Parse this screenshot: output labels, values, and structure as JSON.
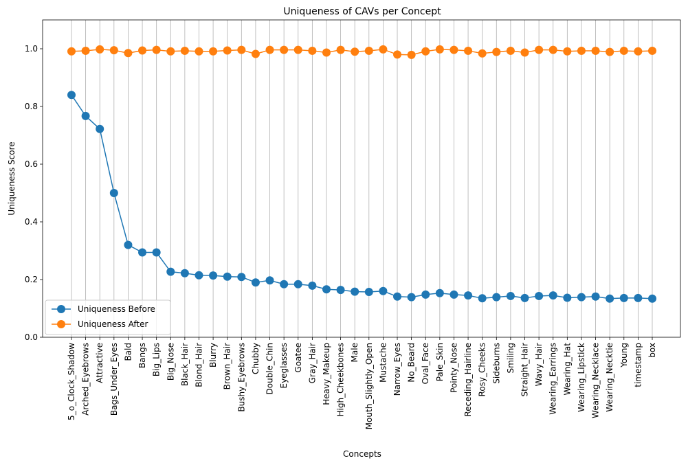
{
  "chart_data": {
    "type": "line",
    "title": "Uniqueness of CAVs per Concept",
    "xlabel": "Concepts",
    "ylabel": "Uniqueness Score",
    "ylim": [
      0,
      1.1
    ],
    "yticks": [
      "0.0",
      "0.2",
      "0.4",
      "0.6",
      "0.8",
      "1.0"
    ],
    "grid": "vertical-x",
    "legend_position": "bottom-left",
    "categories": [
      "5_o_Clock_Shadow",
      "Arched_Eyebrows",
      "Attractive",
      "Bags_Under_Eyes",
      "Bald",
      "Bangs",
      "Big_Lips",
      "Big_Nose",
      "Black_Hair",
      "Blond_Hair",
      "Blurry",
      "Brown_Hair",
      "Bushy_Eyebrows",
      "Chubby",
      "Double_Chin",
      "Eyeglasses",
      "Goatee",
      "Gray_Hair",
      "Heavy_Makeup",
      "High_Cheekbones",
      "Male",
      "Mouth_Slightly_Open",
      "Mustache",
      "Narrow_Eyes",
      "No_Beard",
      "Oval_Face",
      "Pale_Skin",
      "Pointy_Nose",
      "Receding_Hairline",
      "Rosy_Cheeks",
      "Sideburns",
      "Smiling",
      "Straight_Hair",
      "Wavy_Hair",
      "Wearing_Earrings",
      "Wearing_Hat",
      "Wearing_Lipstick",
      "Wearing_Necklace",
      "Wearing_Necktie",
      "Young",
      "timestamp",
      "box"
    ],
    "series": [
      {
        "name": "Uniqueness Before",
        "color": "#1f77b4",
        "values": [
          0.84,
          0.767,
          0.722,
          0.5,
          0.32,
          0.294,
          0.294,
          0.227,
          0.222,
          0.215,
          0.214,
          0.21,
          0.209,
          0.19,
          0.197,
          0.184,
          0.184,
          0.179,
          0.166,
          0.164,
          0.158,
          0.157,
          0.16,
          0.141,
          0.139,
          0.148,
          0.153,
          0.148,
          0.145,
          0.135,
          0.139,
          0.143,
          0.136,
          0.143,
          0.145,
          0.137,
          0.139,
          0.141,
          0.134,
          0.136,
          0.136,
          0.134
        ]
      },
      {
        "name": "Uniqueness After",
        "color": "#ff7f0e",
        "values": [
          0.991,
          0.993,
          0.998,
          0.995,
          0.985,
          0.994,
          0.996,
          0.991,
          0.993,
          0.991,
          0.991,
          0.994,
          0.996,
          0.982,
          0.996,
          0.996,
          0.996,
          0.993,
          0.987,
          0.996,
          0.99,
          0.993,
          0.998,
          0.98,
          0.979,
          0.991,
          0.998,
          0.996,
          0.993,
          0.984,
          0.989,
          0.993,
          0.987,
          0.996,
          0.996,
          0.991,
          0.993,
          0.993,
          0.989,
          0.993,
          0.991,
          0.993
        ]
      }
    ]
  }
}
